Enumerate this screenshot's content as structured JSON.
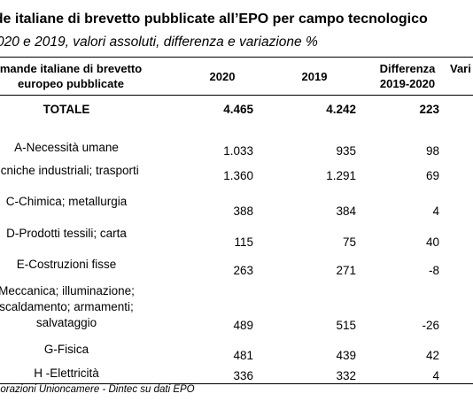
{
  "title": "nde italiane di brevetto pubblicate all’EPO per campo tecnologico",
  "subtitle": "020 e 2019, valori assoluti, differenza e variazione %",
  "header": {
    "category": "mande italiane di brevetto europeo pubblicate",
    "col_2020": "2020",
    "col_2019": "2019",
    "col_diff_line1": "Differenza",
    "col_diff_line2": "2019-2020",
    "col_var": "Vari"
  },
  "rows": [
    {
      "label": "TOTALE",
      "v2020": "4.465",
      "v2019": "4.242",
      "diff": "223"
    },
    {
      "label": "A-Necessità umane",
      "v2020": "1.033",
      "v2019": "935",
      "diff": "98"
    },
    {
      "label": "ecniche industriali; trasporti",
      "v2020": "1.360",
      "v2019": "1.291",
      "diff": "69"
    },
    {
      "label": "C-Chimica; metallurgia",
      "v2020": "388",
      "v2019": "384",
      "diff": "4"
    },
    {
      "label": "D-Prodotti tessili; carta",
      "v2020": "115",
      "v2019": "75",
      "diff": "40"
    },
    {
      "label": "E-Costruzioni fisse",
      "v2020": "263",
      "v2019": "271",
      "diff": "-8"
    },
    {
      "label": "Meccanica; illuminazione; scaldamento; armamenti; salvataggio",
      "v2020": "489",
      "v2019": "515",
      "diff": "-26"
    },
    {
      "label": "G-Fisica",
      "v2020": "481",
      "v2019": "439",
      "diff": "42"
    },
    {
      "label": "H -Elettricità",
      "v2020": "336",
      "v2019": "332",
      "diff": "4"
    }
  ],
  "source": "borazioni Unioncamere - Dintec su dati EPO"
}
